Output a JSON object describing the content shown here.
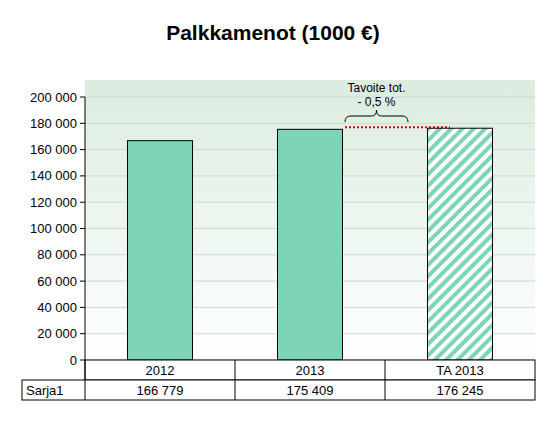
{
  "chart_data": {
    "type": "bar",
    "title": "Palkkamenot (1000 €)",
    "categories": [
      "2012",
      "2013",
      "TA 2013"
    ],
    "series": [
      {
        "name": "Sarja1",
        "color": "#7dd4b6",
        "values": [
          166779,
          175409,
          176245
        ],
        "value_labels": [
          "166 779",
          "175 409",
          "176 245"
        ]
      }
    ],
    "ylim": [
      0,
      200000
    ],
    "yticks": [
      {
        "value": 0,
        "label": "0"
      },
      {
        "value": 20000,
        "label": "20 000"
      },
      {
        "value": 40000,
        "label": "40 000"
      },
      {
        "value": 60000,
        "label": "60 000"
      },
      {
        "value": 80000,
        "label": "80 000"
      },
      {
        "value": 100000,
        "label": "100 000"
      },
      {
        "value": 120000,
        "label": "120 000"
      },
      {
        "value": 140000,
        "label": "140 000"
      },
      {
        "value": 160000,
        "label": "160 000"
      },
      {
        "value": 180000,
        "label": "180 000"
      },
      {
        "value": 200000,
        "label": "200 000"
      }
    ],
    "grid": true,
    "data_labels": true,
    "annotation": [
      "Tavoite tot.",
      "- 0,5 %"
    ],
    "target": 177000
  }
}
